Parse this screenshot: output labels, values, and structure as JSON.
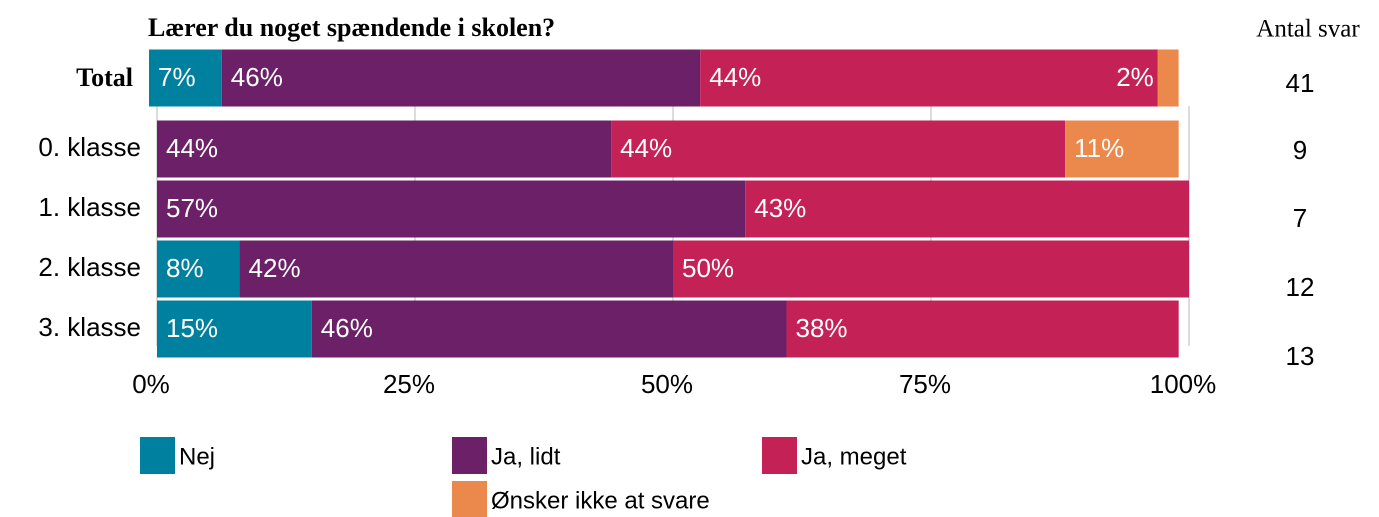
{
  "chart_data": {
    "type": "stacked-bar-horizontal",
    "title": "Lærer du noget spændende i skolen?",
    "categories": [
      "Total",
      "0. klasse",
      "1. klasse",
      "2. klasse",
      "3. klasse"
    ],
    "series": [
      {
        "name": "Nej",
        "color": "#00809f",
        "values": [
          7,
          null,
          null,
          8,
          15
        ],
        "value_labels": [
          "7%",
          null,
          null,
          "8%",
          "15%"
        ]
      },
      {
        "name": "Ja, lidt",
        "color": "#6b2067",
        "values": [
          46,
          44,
          57,
          42,
          46
        ],
        "value_labels": [
          "46%",
          "44%",
          "57%",
          "42%",
          "46%"
        ]
      },
      {
        "name": "Ja, meget",
        "color": "#c42157",
        "values": [
          44,
          44,
          43,
          50,
          38
        ],
        "value_labels": [
          "44%",
          "44%",
          "43%",
          "50%",
          "38%"
        ]
      },
      {
        "name": "Ønsker ikke at svare",
        "color": "#eb884c",
        "values": [
          2,
          11,
          null,
          null,
          null
        ],
        "value_labels": [
          "2%",
          "11%",
          null,
          null,
          null
        ]
      }
    ],
    "xlim": [
      0,
      100
    ],
    "xticks": [
      {
        "value": 0,
        "label": "0%"
      },
      {
        "value": 25,
        "label": "25%"
      },
      {
        "value": 50,
        "label": "50%"
      },
      {
        "value": 75,
        "label": "75%"
      },
      {
        "value": 100,
        "label": "100%"
      }
    ],
    "grid": true,
    "counts_header": "Antal svar",
    "counts": [
      41,
      9,
      7,
      12,
      13
    ]
  }
}
